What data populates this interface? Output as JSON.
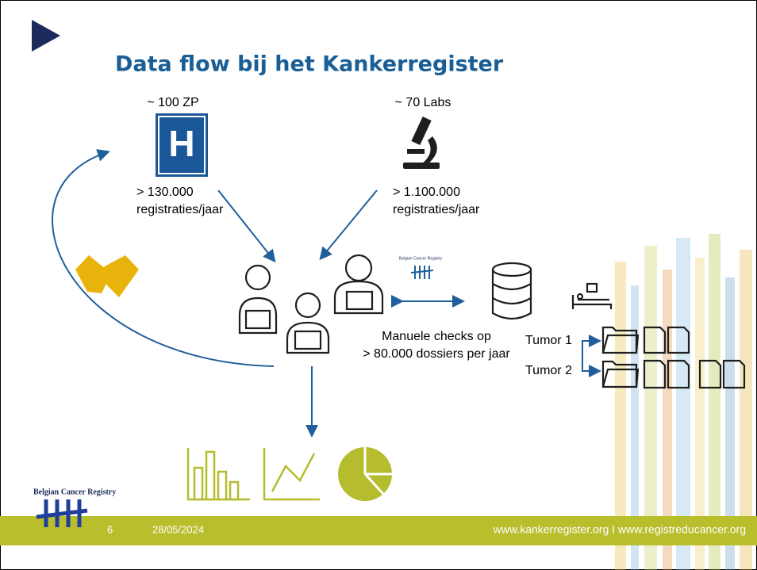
{
  "header": {
    "title": "Data flow bij het Kankerregister"
  },
  "hospitals": {
    "label": "~ 100 ZP",
    "icon_letter": "H",
    "lines": [
      "> 130.000",
      "registraties/jaar"
    ]
  },
  "labs": {
    "label": "~ 70 Labs",
    "lines": [
      "> 1.100.000",
      "registraties/jaar"
    ]
  },
  "checks": {
    "lines": [
      "Manuele checks op",
      "> 80.000 dossiers per jaar"
    ]
  },
  "mini_logo": "Belgian Cancer Registry",
  "tumors": [
    "Tumor 1",
    "Tumor 2"
  ],
  "logo": "Belgian Cancer Registry",
  "footer": {
    "page": "6",
    "date": "28/05/2024",
    "links": "www.kankerregister.org I www.registreducancer.org"
  }
}
